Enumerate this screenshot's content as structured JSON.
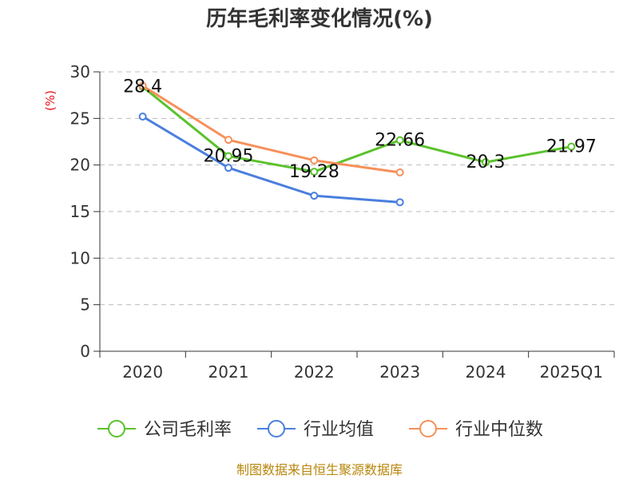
{
  "chart_data": {
    "type": "line",
    "title": "历年毛利率变化情况(%)",
    "ylabel": "(%)",
    "xlabel": "",
    "categories": [
      "2020",
      "2021",
      "2022",
      "2023",
      "2024",
      "2025Q1"
    ],
    "ylim": [
      0,
      30
    ],
    "yticks": [
      0,
      5,
      10,
      15,
      20,
      25,
      30
    ],
    "grid": true,
    "legend_position": "bottom",
    "series": [
      {
        "name": "公司毛利率",
        "color": "#5ac22b",
        "values": [
          28.4,
          20.95,
          19.28,
          22.66,
          20.3,
          21.97
        ],
        "labels": [
          "28.4",
          "20.95",
          "19.28",
          "22.66",
          "20.3",
          "21.97"
        ]
      },
      {
        "name": "行业均值",
        "color": "#4a7fde",
        "values": [
          25.2,
          19.7,
          16.7,
          16.0,
          null,
          null
        ]
      },
      {
        "name": "行业中位数",
        "color": "#f6905a",
        "values": [
          28.5,
          22.7,
          20.5,
          19.2,
          null,
          null
        ]
      }
    ],
    "source": "制图数据来自恒生聚源数据库"
  }
}
